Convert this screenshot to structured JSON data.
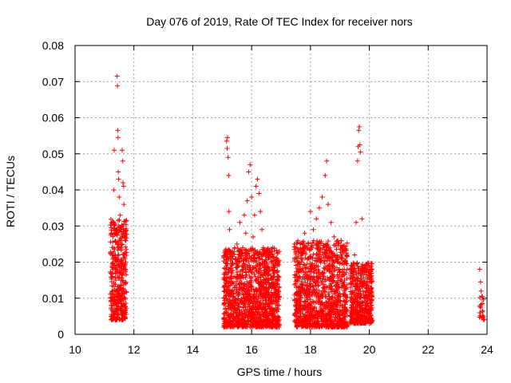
{
  "chart_data": {
    "type": "scatter",
    "title": "Day 076 of 2019, Rate Of TEC Index for receiver nors",
    "xlabel": "GPS time / hours",
    "ylabel": "ROTI / TECUs",
    "xlim": [
      10,
      24
    ],
    "ylim": [
      0,
      0.08
    ],
    "xticks": [
      10,
      12,
      14,
      16,
      18,
      20,
      22,
      24
    ],
    "xtick_labels": [
      "10",
      "12",
      "14",
      "16",
      "18",
      "20",
      "22",
      "24"
    ],
    "yticks": [
      0,
      0.01,
      0.02,
      0.03,
      0.04,
      0.05,
      0.06,
      0.07,
      0.08
    ],
    "ytick_labels": [
      "0",
      "0.01",
      "0.02",
      "0.03",
      "0.04",
      "0.05",
      "0.06",
      "0.07",
      "0.08"
    ],
    "grid": true,
    "marker": "+",
    "color": "#ff0000",
    "series": [
      {
        "name": "ROTI",
        "points": [
          [
            11.25,
            0.005
          ],
          [
            11.28,
            0.012
          ],
          [
            11.3,
            0.018
          ],
          [
            11.3,
            0.031
          ],
          [
            11.32,
            0.04
          ],
          [
            11.33,
            0.051
          ],
          [
            11.35,
            0.009
          ],
          [
            11.36,
            0.022
          ],
          [
            11.38,
            0.015
          ],
          [
            11.4,
            0.007
          ],
          [
            11.42,
            0.028
          ],
          [
            11.43,
            0.0715
          ],
          [
            11.44,
            0.0688
          ],
          [
            11.45,
            0.0565
          ],
          [
            11.46,
            0.0545
          ],
          [
            11.47,
            0.045
          ],
          [
            11.48,
            0.043
          ],
          [
            11.5,
            0.038
          ],
          [
            11.5,
            0.019
          ],
          [
            11.52,
            0.012
          ],
          [
            11.53,
            0.033
          ],
          [
            11.55,
            0.029
          ],
          [
            11.56,
            0.024
          ],
          [
            11.58,
            0.011
          ],
          [
            11.6,
            0.051
          ],
          [
            11.62,
            0.048
          ],
          [
            11.63,
            0.042
          ],
          [
            11.65,
            0.041
          ],
          [
            11.66,
            0.036
          ],
          [
            11.68,
            0.027
          ],
          [
            11.7,
            0.021
          ],
          [
            11.72,
            0.014
          ],
          [
            15.1,
            0.006
          ],
          [
            15.12,
            0.018
          ],
          [
            15.15,
            0.0535
          ],
          [
            15.17,
            0.0515
          ],
          [
            15.18,
            0.0545
          ],
          [
            15.2,
            0.049
          ],
          [
            15.22,
            0.044
          ],
          [
            15.23,
            0.034
          ],
          [
            15.25,
            0.029
          ],
          [
            15.27,
            0.022
          ],
          [
            15.3,
            0.012
          ],
          [
            15.35,
            0.008
          ],
          [
            15.4,
            0.016
          ],
          [
            15.45,
            0.021
          ],
          [
            15.5,
            0.025
          ],
          [
            15.55,
            0.019
          ],
          [
            15.6,
            0.031
          ],
          [
            15.65,
            0.014
          ],
          [
            15.7,
            0.024
          ],
          [
            15.75,
            0.033
          ],
          [
            15.8,
            0.028
          ],
          [
            15.85,
            0.037
          ],
          [
            15.9,
            0.045
          ],
          [
            15.95,
            0.047
          ],
          [
            16.0,
            0.038
          ],
          [
            16.05,
            0.027
          ],
          [
            16.1,
            0.033
          ],
          [
            16.15,
            0.041
          ],
          [
            16.2,
            0.043
          ],
          [
            16.25,
            0.039
          ],
          [
            16.3,
            0.034
          ],
          [
            16.35,
            0.029
          ],
          [
            16.4,
            0.024
          ],
          [
            16.5,
            0.018
          ],
          [
            16.6,
            0.013
          ],
          [
            16.7,
            0.009
          ],
          [
            16.8,
            0.004
          ],
          [
            16.9,
            0.007
          ],
          [
            17.5,
            0.004
          ],
          [
            17.6,
            0.012
          ],
          [
            17.7,
            0.021
          ],
          [
            17.8,
            0.028
          ],
          [
            17.9,
            0.024
          ],
          [
            18.0,
            0.034
          ],
          [
            18.1,
            0.029
          ],
          [
            18.2,
            0.032
          ],
          [
            18.3,
            0.035
          ],
          [
            18.4,
            0.038
          ],
          [
            18.5,
            0.044
          ],
          [
            18.55,
            0.048
          ],
          [
            18.6,
            0.036
          ],
          [
            18.7,
            0.031
          ],
          [
            18.8,
            0.027
          ],
          [
            18.9,
            0.022
          ],
          [
            19.0,
            0.018
          ],
          [
            19.1,
            0.014
          ],
          [
            19.2,
            0.011
          ],
          [
            19.4,
            0.008
          ],
          [
            19.5,
            0.022
          ],
          [
            19.55,
            0.031
          ],
          [
            19.6,
            0.048
          ],
          [
            19.62,
            0.052
          ],
          [
            19.64,
            0.0565
          ],
          [
            19.66,
            0.0575
          ],
          [
            19.68,
            0.0525
          ],
          [
            19.7,
            0.0505
          ],
          [
            19.75,
            0.032
          ],
          [
            19.8,
            0.018
          ],
          [
            19.9,
            0.012
          ],
          [
            20.0,
            0.01
          ],
          [
            23.75,
            0.018
          ],
          [
            23.78,
            0.0145
          ],
          [
            23.8,
            0.012
          ],
          [
            23.82,
            0.0105
          ],
          [
            23.84,
            0.0085
          ],
          [
            23.85,
            0.0065
          ],
          [
            23.86,
            0.0045
          ],
          [
            23.88,
            0.004
          ]
        ]
      }
    ],
    "bands": [
      {
        "x": [
          11.2,
          11.75
        ],
        "y": [
          0.004,
          0.032
        ],
        "count": 380
      },
      {
        "x": [
          15.05,
          16.95
        ],
        "y": [
          0.002,
          0.024
        ],
        "count": 1300
      },
      {
        "x": [
          17.45,
          19.25
        ],
        "y": [
          0.002,
          0.026
        ],
        "count": 1150
      },
      {
        "x": [
          19.35,
          20.1
        ],
        "y": [
          0.003,
          0.02
        ],
        "count": 520
      },
      {
        "x": [
          23.74,
          23.9
        ],
        "y": [
          0.004,
          0.011
        ],
        "count": 18
      }
    ]
  }
}
